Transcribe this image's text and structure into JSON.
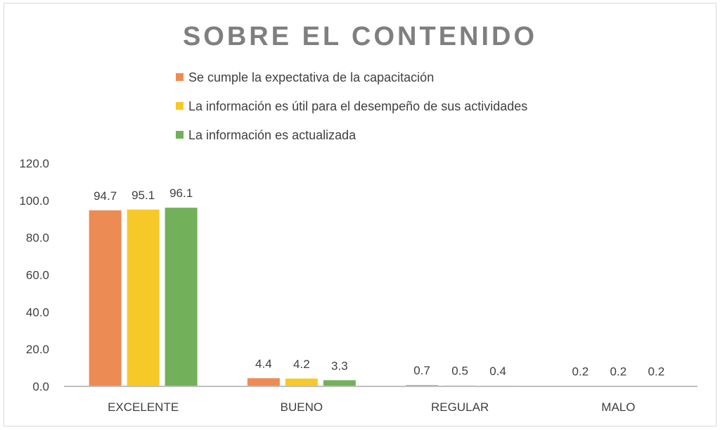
{
  "chart_data": {
    "type": "bar",
    "title": "SOBRE EL CONTENIDO",
    "categories": [
      "EXCELENTE",
      "BUENO",
      "REGULAR",
      "MALO"
    ],
    "series": [
      {
        "name": "Se cumple la expectativa de la capacitación",
        "color": "#ed8b55",
        "values": [
          94.7,
          4.4,
          0.7,
          0.2
        ]
      },
      {
        "name": "La información es útil para el desempeño de sus actividades",
        "color": "#f7c928",
        "values": [
          95.1,
          4.2,
          0.5,
          0.2
        ]
      },
      {
        "name": "La información es actualizada",
        "color": "#72b05a",
        "values": [
          96.1,
          3.3,
          0.4,
          0.2
        ]
      }
    ],
    "ylim": [
      0,
      120
    ],
    "yticks": [
      "0.0",
      "20.0",
      "40.0",
      "60.0",
      "80.0",
      "100.0",
      "120.0"
    ],
    "grid": false,
    "legend_position": "top"
  }
}
